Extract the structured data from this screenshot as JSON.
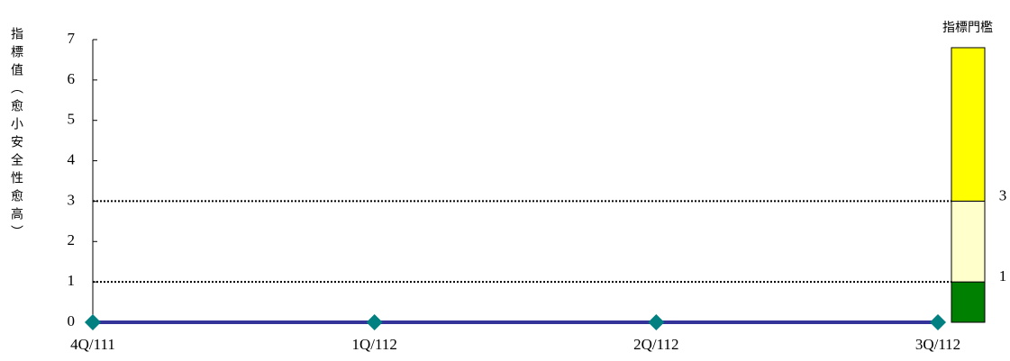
{
  "chart_data": {
    "type": "line",
    "y_label": "指標值（愈小安全性愈高）",
    "categories": [
      "4Q/111",
      "1Q/112",
      "2Q/112",
      "3Q/112"
    ],
    "values": [
      0,
      0,
      0,
      0
    ],
    "color": "#333399",
    "marker_color": "#008080",
    "ylim": [
      0,
      7
    ],
    "yticks": [
      0,
      1,
      2,
      3,
      4,
      5,
      6,
      7
    ],
    "threshold_panel": {
      "title": "指標門檻",
      "levels": [
        1,
        3
      ],
      "top": 6.8,
      "colors": [
        "#008000",
        "#ffffcc",
        "#ffff00"
      ]
    }
  }
}
